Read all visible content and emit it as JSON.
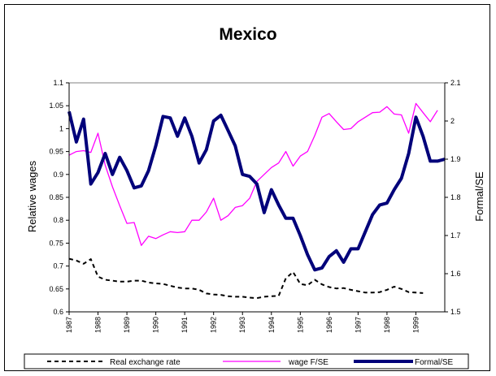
{
  "chart_data": {
    "type": "line",
    "title": "Mexico",
    "ylabel": "Relative wages",
    "y2label": "Formal/SE",
    "ylim": [
      0.6,
      1.1
    ],
    "y2lim": [
      1.5,
      2.1
    ],
    "yticks": [
      "0.6",
      "0.65",
      "0.7",
      "0.75",
      "0.8",
      "0.85",
      "0.9",
      "0.95",
      "1",
      "1.05",
      "1.1"
    ],
    "y2ticks": [
      "1.5",
      "1.6",
      "1.7",
      "1.8",
      "1.9",
      "2",
      "2.1"
    ],
    "x_range": [
      1987,
      2000
    ],
    "xticks": [
      "1987",
      "1988",
      "1989",
      "1990",
      "1991",
      "1992",
      "1993",
      "1994",
      "1995",
      "1996",
      "1997",
      "1998",
      "1999"
    ],
    "legend_position": "bottom",
    "series": [
      {
        "name": "Real exchange rate",
        "axis": "left",
        "color": "#000000",
        "style": "dashed",
        "x": [
          1987.0,
          1987.25,
          1987.5,
          1987.75,
          1988.0,
          1988.25,
          1988.5,
          1988.75,
          1989.0,
          1989.25,
          1989.5,
          1989.75,
          1990.0,
          1990.25,
          1990.5,
          1990.75,
          1991.0,
          1991.25,
          1991.5,
          1991.75,
          1992.0,
          1992.25,
          1992.5,
          1992.75,
          1993.0,
          1993.25,
          1993.5,
          1993.75,
          1994.0,
          1994.25,
          1994.5,
          1994.75,
          1995.0,
          1995.25,
          1995.5,
          1995.75,
          1996.0,
          1996.25,
          1996.5,
          1996.75,
          1997.0,
          1997.25,
          1997.5,
          1997.75,
          1998.0,
          1998.25,
          1998.5,
          1998.75,
          1999.0,
          1999.25
        ],
        "values": [
          0.716,
          0.712,
          0.705,
          0.715,
          0.677,
          0.67,
          0.668,
          0.666,
          0.666,
          0.668,
          0.668,
          0.664,
          0.662,
          0.661,
          0.657,
          0.653,
          0.651,
          0.651,
          0.648,
          0.64,
          0.638,
          0.637,
          0.634,
          0.633,
          0.633,
          0.631,
          0.63,
          0.633,
          0.634,
          0.635,
          0.673,
          0.687,
          0.661,
          0.658,
          0.67,
          0.66,
          0.654,
          0.651,
          0.652,
          0.648,
          0.645,
          0.642,
          0.642,
          0.643,
          0.648,
          0.655,
          0.65,
          0.643,
          0.642,
          0.641
        ]
      },
      {
        "name": "wage F/SE",
        "axis": "left",
        "color": "#ff00ff",
        "style": "solid",
        "x": [
          1987.0,
          1987.25,
          1987.5,
          1987.75,
          1988.0,
          1988.25,
          1988.5,
          1988.75,
          1989.0,
          1989.25,
          1989.5,
          1989.75,
          1990.0,
          1990.25,
          1990.5,
          1990.75,
          1991.0,
          1991.25,
          1991.5,
          1991.75,
          1992.0,
          1992.25,
          1992.5,
          1992.75,
          1993.0,
          1993.25,
          1993.5,
          1993.75,
          1994.0,
          1994.25,
          1994.5,
          1994.75,
          1995.0,
          1995.25,
          1995.5,
          1995.75,
          1996.0,
          1996.25,
          1996.5,
          1996.75,
          1997.0,
          1997.25,
          1997.5,
          1997.75,
          1998.0,
          1998.25,
          1998.5,
          1998.75,
          1999.0,
          1999.25,
          1999.5,
          1999.75
        ],
        "values": [
          0.942,
          0.95,
          0.952,
          0.948,
          0.99,
          0.92,
          0.873,
          0.832,
          0.793,
          0.795,
          0.745,
          0.765,
          0.76,
          0.768,
          0.775,
          0.773,
          0.775,
          0.8,
          0.8,
          0.818,
          0.848,
          0.8,
          0.81,
          0.828,
          0.832,
          0.848,
          0.885,
          0.9,
          0.915,
          0.925,
          0.95,
          0.918,
          0.94,
          0.95,
          0.985,
          1.025,
          1.033,
          1.015,
          0.998,
          1.0,
          1.015,
          1.025,
          1.035,
          1.036,
          1.048,
          1.032,
          1.03,
          0.99,
          1.055,
          1.035,
          1.015,
          1.04
        ]
      },
      {
        "name": "Formal/SE",
        "axis": "right",
        "color": "#00007a",
        "style": "solid",
        "x": [
          1987.0,
          1987.25,
          1987.5,
          1987.75,
          1988.0,
          1988.25,
          1988.5,
          1988.75,
          1989.0,
          1989.25,
          1989.5,
          1989.75,
          1990.0,
          1990.25,
          1990.5,
          1990.75,
          1991.0,
          1991.25,
          1991.5,
          1991.75,
          1992.0,
          1992.25,
          1992.5,
          1992.75,
          1993.0,
          1993.25,
          1993.5,
          1993.75,
          1994.0,
          1994.25,
          1994.5,
          1994.75,
          1995.0,
          1995.25,
          1995.5,
          1995.75,
          1996.0,
          1996.25,
          1996.5,
          1996.75,
          1997.0,
          1997.25,
          1997.5,
          1997.75,
          1998.0,
          1998.25,
          1998.5,
          1998.75,
          1999.0,
          1999.25,
          1999.5,
          1999.75,
          2000.0
        ],
        "values": [
          2.025,
          1.945,
          2.005,
          1.835,
          1.865,
          1.915,
          1.86,
          1.905,
          1.87,
          1.825,
          1.83,
          1.87,
          1.935,
          2.012,
          2.008,
          1.96,
          2.008,
          1.96,
          1.89,
          1.925,
          2.0,
          2.015,
          1.975,
          1.935,
          1.86,
          1.855,
          1.835,
          1.76,
          1.82,
          1.78,
          1.745,
          1.745,
          1.7,
          1.65,
          1.61,
          1.615,
          1.645,
          1.66,
          1.63,
          1.665,
          1.665,
          1.71,
          1.755,
          1.78,
          1.785,
          1.82,
          1.85,
          1.915,
          2.01,
          1.96,
          1.895,
          1.895,
          1.9
        ]
      }
    ]
  }
}
